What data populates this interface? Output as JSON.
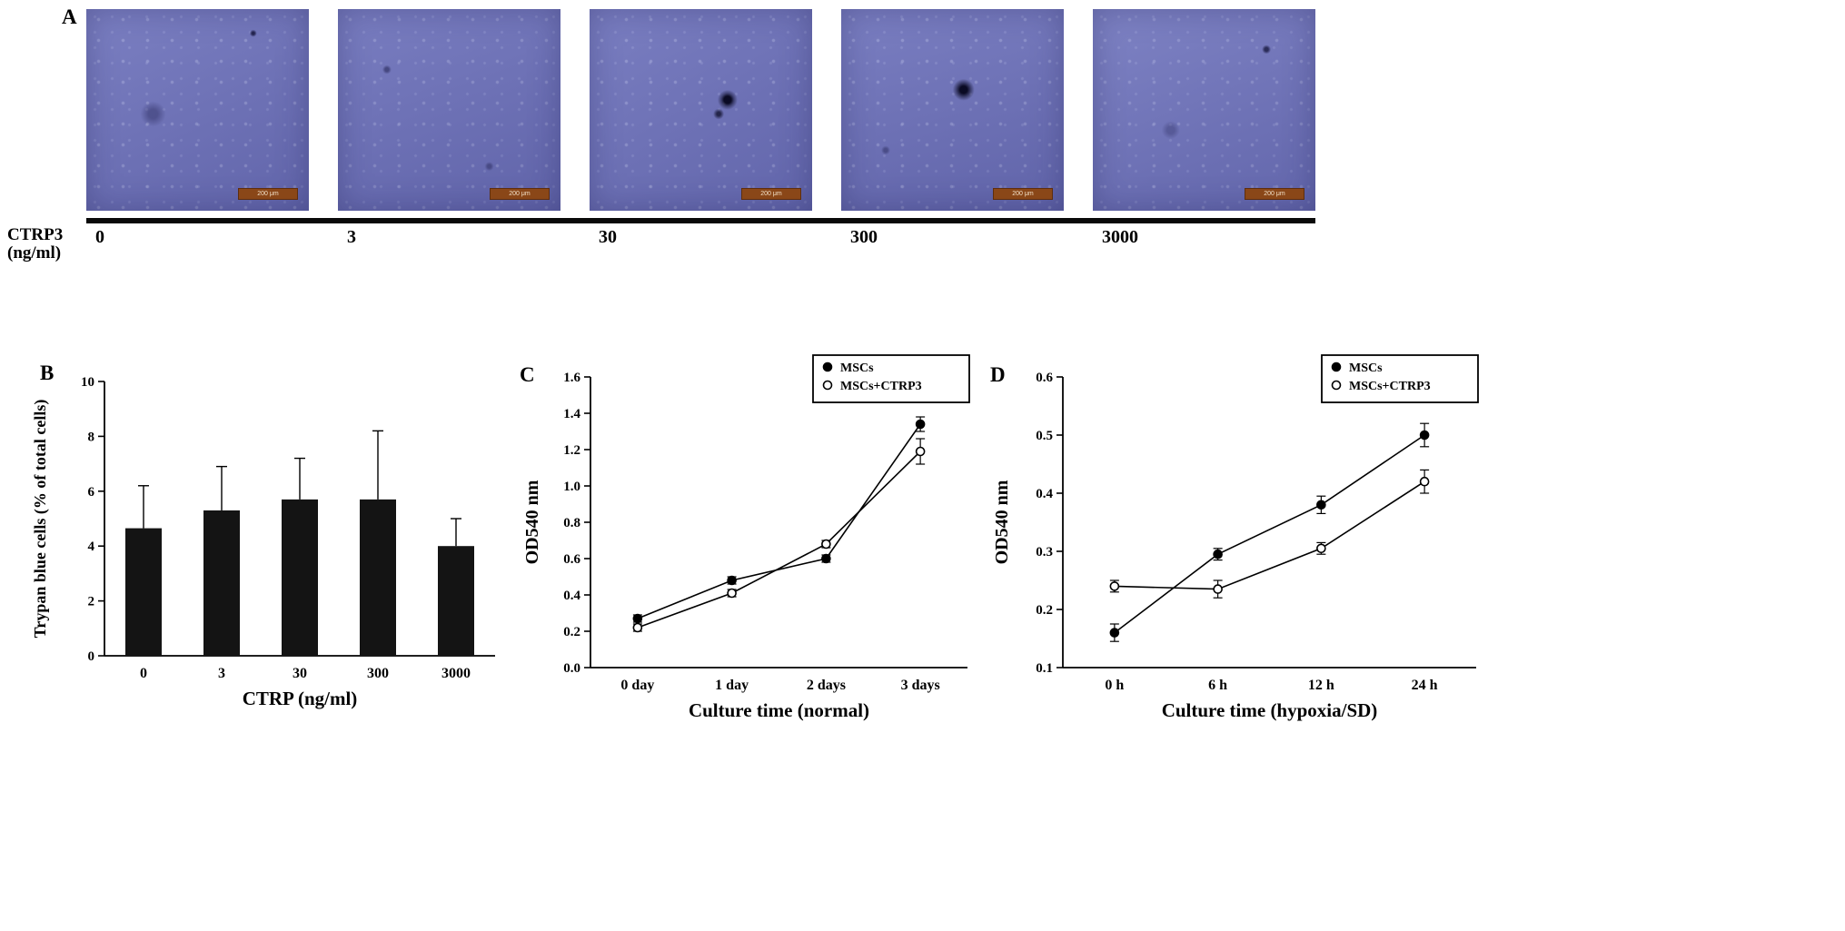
{
  "panelA": {
    "label": "A",
    "row_label_line1": "CTRP3",
    "row_label_line2": "(ng/ml)",
    "concentrations": [
      "0",
      "3",
      "30",
      "300",
      "3000"
    ],
    "scale_bar_label": "200 μm",
    "micrograph_color": "#6d71b7",
    "scale_bar_color": "#8a4718"
  },
  "chart_data": [
    {
      "id": "trypan-blue",
      "panel_label": "B",
      "type": "bar",
      "categories": [
        "0",
        "3",
        "30",
        "300",
        "3000"
      ],
      "values": [
        4.65,
        5.3,
        5.7,
        5.7,
        4.0
      ],
      "errors": [
        1.55,
        1.6,
        1.5,
        2.5,
        1.0
      ],
      "xlabel": "CTRP (ng/ml)",
      "ylabel": "Trypan blue cells (% of total cells)",
      "ylim": [
        0,
        10
      ],
      "ytick_step": 2,
      "ytick_decimals": 0,
      "bar_color": "#141414",
      "grid": false
    },
    {
      "id": "proliferation-normal",
      "panel_label": "C",
      "type": "line",
      "categories": [
        "0 day",
        "1 day",
        "2 days",
        "3 days"
      ],
      "series": [
        {
          "name": "MSCs",
          "marker": "filled",
          "values": [
            0.27,
            0.48,
            0.6,
            1.34
          ],
          "errors": [
            0.02,
            0.02,
            0.02,
            0.04
          ]
        },
        {
          "name": "MSCs+CTRP3",
          "marker": "open",
          "values": [
            0.22,
            0.41,
            0.68,
            1.19
          ],
          "errors": [
            0.02,
            0.02,
            0.02,
            0.07
          ]
        }
      ],
      "xlabel": "Culture time (normal)",
      "ylabel": "OD540 nm",
      "ylim": [
        0.0,
        1.6
      ],
      "ytick_step": 0.2,
      "ytick_decimals": 1,
      "legend_position": "top-right",
      "grid": false
    },
    {
      "id": "proliferation-hypoxia",
      "panel_label": "D",
      "type": "line",
      "categories": [
        "0 h",
        "6 h",
        "12 h",
        "24 h"
      ],
      "series": [
        {
          "name": "MSCs",
          "marker": "filled",
          "values": [
            0.16,
            0.295,
            0.38,
            0.5
          ],
          "errors": [
            0.015,
            0.01,
            0.015,
            0.02
          ]
        },
        {
          "name": "MSCs+CTRP3",
          "marker": "open",
          "values": [
            0.24,
            0.235,
            0.305,
            0.42
          ],
          "errors": [
            0.01,
            0.015,
            0.01,
            0.02
          ]
        }
      ],
      "xlabel": "Culture time (hypoxia/SD)",
      "ylabel": "OD540 nm",
      "ylim": [
        0.1,
        0.6
      ],
      "ytick_step": 0.1,
      "ytick_decimals": 1,
      "legend_position": "top-right",
      "grid": false
    }
  ]
}
